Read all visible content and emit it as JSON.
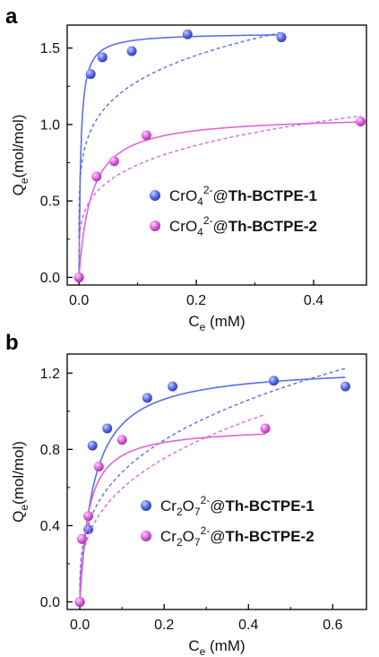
{
  "chart_data": [
    {
      "panel": "a",
      "type": "scatter",
      "xlabel": {
        "main": "C",
        "sub": "e",
        "rest": " (mM)"
      },
      "ylabel": {
        "main": "Q",
        "sub": "e",
        "rest": "(mol/mol)"
      },
      "xlim": [
        -0.02,
        0.49
      ],
      "ylim": [
        -0.05,
        1.65
      ],
      "xticks": [
        0.0,
        0.2,
        0.4
      ],
      "xtick_labels": [
        "0.0",
        "0.2",
        "0.4"
      ],
      "yticks": [
        0.0,
        0.5,
        1.0,
        1.5
      ],
      "ytick_labels": [
        "0.0",
        "0.5",
        "1.0",
        "1.5"
      ],
      "legend_position": "center-right",
      "series": [
        {
          "name": {
            "pre": "CrO",
            "sub": "4",
            "sup": "2-",
            "post": "@",
            "bold": "Th-BCTPE-1"
          },
          "color": "#5a6fe6",
          "points": [
            [
              0.0,
              0.0
            ],
            [
              0.02,
              1.33
            ],
            [
              0.04,
              1.44
            ],
            [
              0.09,
              1.48
            ],
            [
              0.185,
              1.59
            ],
            [
              0.345,
              1.57
            ]
          ],
          "fit_solid": {
            "model": "langmuir",
            "qmax": 1.6,
            "K": 330
          },
          "fit_dashed": {
            "model": "freundlich",
            "K": 1.94,
            "n": 0.18
          }
        },
        {
          "name": {
            "pre": "CrO",
            "sub": "4",
            "sup": "2-",
            "post": "@",
            "bold": "Th-BCTPE-2"
          },
          "color": "#dd66dd",
          "points": [
            [
              0.0,
              0.0
            ],
            [
              0.03,
              0.66
            ],
            [
              0.06,
              0.76
            ],
            [
              0.115,
              0.93
            ],
            [
              0.48,
              1.02
            ]
          ],
          "fit_solid": {
            "model": "langmuir",
            "qmax": 1.06,
            "K": 48
          },
          "fit_dashed": {
            "model": "freundlich",
            "K": 1.25,
            "n": 0.23
          }
        }
      ]
    },
    {
      "panel": "b",
      "type": "scatter",
      "xlabel": {
        "main": "C",
        "sub": "e",
        "rest": " (mM)"
      },
      "ylabel": {
        "main": "Q",
        "sub": "e",
        "rest": "(mol/mol)"
      },
      "xlim": [
        -0.03,
        0.68
      ],
      "ylim": [
        -0.04,
        1.3
      ],
      "xticks": [
        0.0,
        0.2,
        0.4,
        0.6
      ],
      "xtick_labels": [
        "0.0",
        "0.2",
        "0.4",
        "0.6"
      ],
      "yticks": [
        0.0,
        0.4,
        0.8,
        1.2
      ],
      "ytick_labels": [
        "0.0",
        "0.4",
        "0.8",
        "1.2"
      ],
      "legend_position": "center-right",
      "series": [
        {
          "name": {
            "pre": "Cr",
            "sub": "2",
            "pre2": "O",
            "sub2": "7",
            "sup": "2-",
            "post": "@",
            "bold": "Th-BCTPE-1"
          },
          "color": "#5a6fe6",
          "points": [
            [
              0.0,
              0.0
            ],
            [
              0.02,
              0.38
            ],
            [
              0.03,
              0.82
            ],
            [
              0.065,
              0.91
            ],
            [
              0.16,
              1.07
            ],
            [
              0.22,
              1.13
            ],
            [
              0.46,
              1.16
            ],
            [
              0.63,
              1.13
            ]
          ],
          "fit_solid": {
            "model": "langmuir",
            "qmax": 1.24,
            "K": 30
          },
          "fit_dashed": {
            "model": "freundlich",
            "K": 1.42,
            "n": 0.32
          }
        },
        {
          "name": {
            "pre": "Cr",
            "sub": "2",
            "pre2": "O",
            "sub2": "7",
            "sup": "2-",
            "post": "@",
            "bold": "Th-BCTPE-2"
          },
          "color": "#dd66dd",
          "points": [
            [
              0.0,
              0.0
            ],
            [
              0.005,
              0.33
            ],
            [
              0.02,
              0.45
            ],
            [
              0.045,
              0.71
            ],
            [
              0.1,
              0.85
            ],
            [
              0.44,
              0.91
            ]
          ],
          "fit_solid": {
            "model": "langmuir",
            "qmax": 0.92,
            "K": 50
          },
          "fit_dashed": {
            "model": "freundlich",
            "K": 1.3,
            "n": 0.34
          }
        }
      ]
    }
  ]
}
